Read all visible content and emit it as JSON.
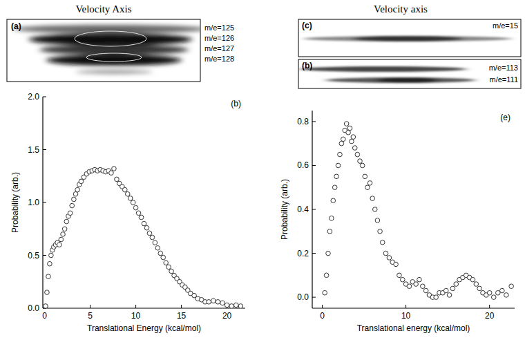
{
  "images": {
    "left": {
      "title": "Velocity Axis",
      "panels": [
        {
          "letter": "(a)",
          "labels": [
            "m/e=125",
            "m/e=126",
            "m/e=127",
            "m/e=128"
          ]
        }
      ]
    },
    "right": {
      "title": "Velocity axis",
      "panels": [
        {
          "letter": "(c)",
          "labels": [
            "m/e=15"
          ]
        },
        {
          "letter": "(b)",
          "labels": [
            "m/e=113",
            "m/e=111"
          ]
        }
      ]
    }
  },
  "chart_data": [
    {
      "type": "scatter",
      "annotation": "(b)",
      "x_label": "Translational Energy (kcal/mol)",
      "y_label": "Probability (arb.)",
      "marker": "circle",
      "color": "#333333",
      "x": [
        0.1,
        0.25,
        0.4,
        0.55,
        0.7,
        0.85,
        1.0,
        1.2,
        1.4,
        1.6,
        1.8,
        2.0,
        2.2,
        2.4,
        2.6,
        2.8,
        3.0,
        3.2,
        3.4,
        3.6,
        3.8,
        4.0,
        4.3,
        4.6,
        4.9,
        5.2,
        5.5,
        5.8,
        6.1,
        6.4,
        6.7,
        7.0,
        7.3,
        7.6,
        7.9,
        8.2,
        8.5,
        8.8,
        9.1,
        9.4,
        9.7,
        10.0,
        10.3,
        10.6,
        10.9,
        11.2,
        11.5,
        11.8,
        12.1,
        12.4,
        12.7,
        13.0,
        13.3,
        13.6,
        13.9,
        14.2,
        14.5,
        14.8,
        15.1,
        15.4,
        15.7,
        16.0,
        16.4,
        16.8,
        17.2,
        17.6,
        18.0,
        18.5,
        19.0,
        19.5,
        20.0,
        20.5,
        21.0,
        21.5
      ],
      "values": [
        0.02,
        0.15,
        0.3,
        0.42,
        0.5,
        0.55,
        0.58,
        0.6,
        0.62,
        0.6,
        0.65,
        0.7,
        0.75,
        0.82,
        0.87,
        0.9,
        0.97,
        1.03,
        1.08,
        1.12,
        1.17,
        1.2,
        1.24,
        1.27,
        1.29,
        1.3,
        1.31,
        1.3,
        1.31,
        1.3,
        1.29,
        1.3,
        1.28,
        1.32,
        1.22,
        1.18,
        1.15,
        1.12,
        1.08,
        1.04,
        1.0,
        0.95,
        0.9,
        0.86,
        0.8,
        0.76,
        0.71,
        0.67,
        0.62,
        0.57,
        0.52,
        0.48,
        0.43,
        0.39,
        0.35,
        0.31,
        0.28,
        0.25,
        0.22,
        0.2,
        0.17,
        0.14,
        0.12,
        0.09,
        0.08,
        0.06,
        0.06,
        0.07,
        0.06,
        0.05,
        0.03,
        0.02,
        0.03,
        0.02
      ],
      "xlim": [
        -0.2,
        22
      ],
      "ylim": [
        0,
        2
      ],
      "xticks": [
        0,
        5,
        10,
        15,
        20
      ],
      "yticks": [
        {
          "value": 0,
          "label": "0.0"
        },
        0.5,
        {
          "value": 1,
          "label": "1.0"
        },
        1.5,
        {
          "value": 2,
          "label": "2.0"
        }
      ]
    },
    {
      "type": "scatter",
      "annotation": "(e)",
      "x_label": "Translational energy (kcal/mol)",
      "y_label": "Probability (arb.)",
      "marker": "circle",
      "color": "#333333",
      "x": [
        0.3,
        0.5,
        0.7,
        0.9,
        1.1,
        1.3,
        1.5,
        1.7,
        1.9,
        2.1,
        2.3,
        2.5,
        2.7,
        2.9,
        3.1,
        3.3,
        3.5,
        3.7,
        3.9,
        4.2,
        4.5,
        4.8,
        5.1,
        5.4,
        5.7,
        6.0,
        6.3,
        6.6,
        6.9,
        7.2,
        7.6,
        8.0,
        8.4,
        8.8,
        9.2,
        9.6,
        10.0,
        10.4,
        10.8,
        11.2,
        11.6,
        12.0,
        12.4,
        12.8,
        13.2,
        13.6,
        14.0,
        14.4,
        14.8,
        15.2,
        15.6,
        16.0,
        16.4,
        16.8,
        17.2,
        17.6,
        18.0,
        18.4,
        18.8,
        19.2,
        19.6,
        20.0,
        20.5,
        21.0,
        21.5,
        22.0,
        22.6
      ],
      "values": [
        0.02,
        0.1,
        0.2,
        0.3,
        0.36,
        0.44,
        0.5,
        0.55,
        0.6,
        0.65,
        0.7,
        0.72,
        0.76,
        0.79,
        0.75,
        0.77,
        0.71,
        0.73,
        0.68,
        0.65,
        0.62,
        0.6,
        0.55,
        0.5,
        0.52,
        0.45,
        0.4,
        0.35,
        0.3,
        0.25,
        0.2,
        0.18,
        0.16,
        0.15,
        0.1,
        0.08,
        0.06,
        0.05,
        0.07,
        0.06,
        0.08,
        0.05,
        0.03,
        0.01,
        0.0,
        0.0,
        0.02,
        0.02,
        0.03,
        0.01,
        0.04,
        0.06,
        0.08,
        0.09,
        0.1,
        0.09,
        0.08,
        0.06,
        0.04,
        0.02,
        0.01,
        0.02,
        0.0,
        0.02,
        0.03,
        0.01,
        0.05
      ],
      "xlim": [
        -1.2,
        23
      ],
      "ylim": [
        -0.05,
        0.85
      ],
      "xticks": [
        0,
        10,
        20
      ],
      "yticks": [
        {
          "value": 0,
          "label": "0.0"
        },
        0.2,
        0.4,
        0.6,
        0.8
      ]
    }
  ]
}
